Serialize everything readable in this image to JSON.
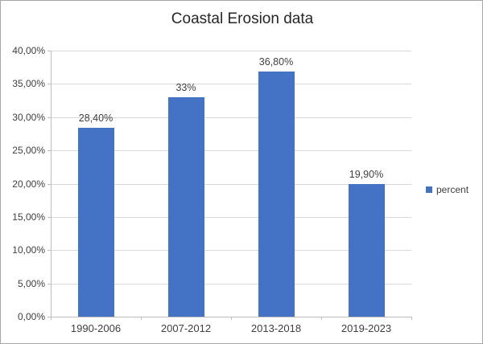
{
  "frame": {
    "background": "#ffffff",
    "border_color": "#a6a6a6"
  },
  "chart_data": {
    "type": "bar",
    "title": "Coastal Erosion data",
    "categories": [
      "1990-2006",
      "2007-2012",
      "2013-2018",
      "2019-2023"
    ],
    "series": [
      {
        "name": "percent",
        "values": [
          28.4,
          33.0,
          36.8,
          19.9
        ]
      }
    ],
    "data_labels": [
      "28,40%",
      "33%",
      "36,80%",
      "19,90%"
    ],
    "y_axis": {
      "min": 0,
      "max": 40,
      "step": 5,
      "tick_labels": [
        "0,00%",
        "5,00%",
        "10,00%",
        "15,00%",
        "20,00%",
        "25,00%",
        "30,00%",
        "35,00%",
        "40,00%"
      ]
    },
    "xlabel": "",
    "ylabel": "",
    "grid": true,
    "legend": {
      "position": "right",
      "entries": [
        {
          "label": "percent",
          "color": "#4472c4"
        }
      ]
    },
    "colors": {
      "bar": "#4472c4",
      "gridline": "#d9d9d9",
      "axis_line": "#bfbfbf",
      "label_text": "#404040",
      "title_text": "#262626"
    }
  }
}
